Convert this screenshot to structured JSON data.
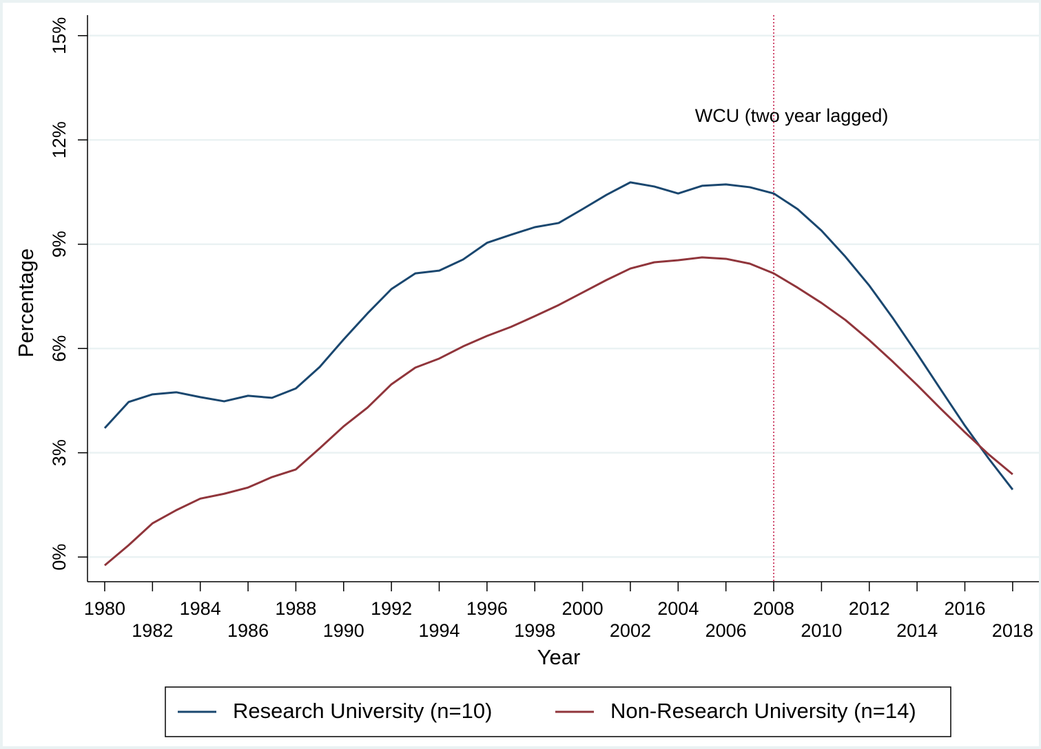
{
  "chart_data": {
    "type": "line",
    "x_label": "Year",
    "y_label": "Percentage",
    "x": [
      1980,
      1981,
      1982,
      1983,
      1984,
      1985,
      1986,
      1987,
      1988,
      1989,
      1990,
      1991,
      1992,
      1993,
      1994,
      1995,
      1996,
      1997,
      1998,
      1999,
      2000,
      2001,
      2002,
      2003,
      2004,
      2005,
      2006,
      2007,
      2008,
      2009,
      2010,
      2011,
      2012,
      2013,
      2014,
      2015,
      2016,
      2017,
      2018
    ],
    "series": [
      {
        "name": "Research University (n=10)",
        "color": "#1a476f",
        "values": [
          3.71,
          4.46,
          4.68,
          4.74,
          4.6,
          4.48,
          4.64,
          4.58,
          4.85,
          5.47,
          6.26,
          7.01,
          7.71,
          8.16,
          8.24,
          8.56,
          9.04,
          9.27,
          9.49,
          9.61,
          10.01,
          10.42,
          10.78,
          10.66,
          10.46,
          10.68,
          10.72,
          10.64,
          10.46,
          10.01,
          9.39,
          8.64,
          7.81,
          6.86,
          5.85,
          4.81,
          3.78,
          2.83,
          1.94
        ]
      },
      {
        "name": "Non-Research University (n=14)",
        "color": "#90353b",
        "values": [
          -0.24,
          0.34,
          0.97,
          1.35,
          1.68,
          1.82,
          2.0,
          2.3,
          2.52,
          3.13,
          3.76,
          4.3,
          4.97,
          5.45,
          5.71,
          6.06,
          6.36,
          6.62,
          6.93,
          7.25,
          7.61,
          7.97,
          8.3,
          8.48,
          8.54,
          8.62,
          8.58,
          8.44,
          8.16,
          7.75,
          7.31,
          6.82,
          6.24,
          5.61,
          4.95,
          4.26,
          3.59,
          2.95,
          2.38
        ]
      }
    ],
    "xlim": [
      1979.28,
      2019.1
    ],
    "xticks": [
      1980,
      1982,
      1984,
      1986,
      1988,
      1990,
      1992,
      1994,
      1996,
      1998,
      2000,
      2002,
      2004,
      2006,
      2008,
      2010,
      2012,
      2014,
      2016,
      2018
    ],
    "ylim": [
      -0.71,
      15.59
    ],
    "yticks": [
      {
        "value": 0,
        "label": "0%"
      },
      {
        "value": 3,
        "label": "3%"
      },
      {
        "value": 6,
        "label": "6%"
      },
      {
        "value": 9,
        "label": "9%"
      },
      {
        "value": 12,
        "label": "12%"
      },
      {
        "value": 15,
        "label": "15%"
      }
    ],
    "grid": true,
    "vline": {
      "x": 2008,
      "color": "#d04a6e",
      "label": "WCU (two year lagged)"
    },
    "legend": "bottom"
  }
}
